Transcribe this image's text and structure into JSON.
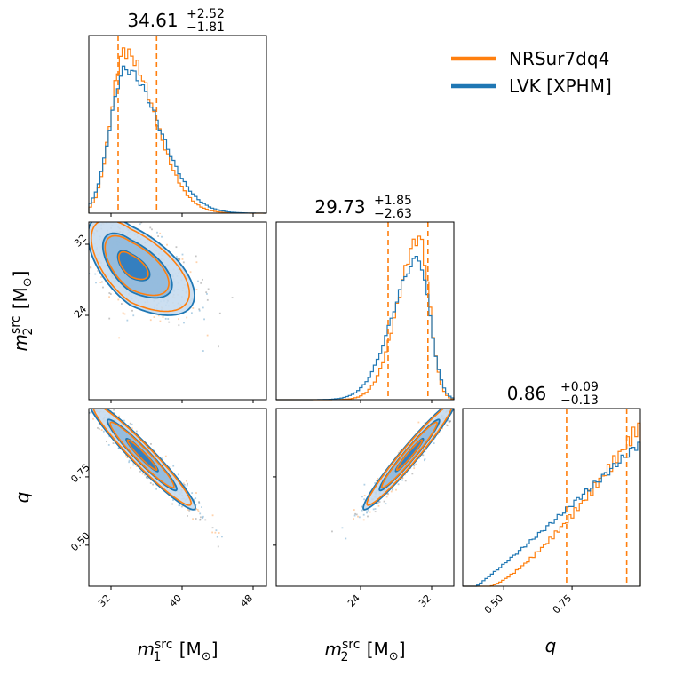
{
  "chart_data": {
    "type": "corner",
    "series": [
      {
        "name": "NRSur7dq4",
        "color": "#ff7f0e"
      },
      {
        "name": "LVK [XPHM]",
        "color": "#1f77b4"
      }
    ],
    "parameters": [
      {
        "key": "m1",
        "label_main": "m",
        "label_sub": "1",
        "label_sup": "src",
        "label_unit": "[M",
        "label_unit_sub": "⊙",
        "label_close": "]",
        "title_median": "34.61",
        "title_plus": "+2.52",
        "title_minus": "−1.81",
        "range": [
          29.5,
          49.5
        ],
        "ticks": [
          32,
          40,
          48
        ],
        "tick_labels": [
          "32",
          "40",
          "48"
        ],
        "quantiles": [
          32.8,
          37.13
        ]
      },
      {
        "key": "m2",
        "label_main": "m",
        "label_sub": "2",
        "label_sup": "src",
        "label_unit": "[M",
        "label_unit_sub": "⊙",
        "label_close": "]",
        "title_median": "29.73",
        "title_plus": "+1.85",
        "title_minus": "−2.63",
        "range": [
          14.5,
          34.5
        ],
        "ticks": [
          24,
          32
        ],
        "tick_labels": [
          "24",
          "32"
        ],
        "quantiles": [
          27.1,
          31.58
        ]
      },
      {
        "key": "q",
        "label_main": "q",
        "title_median": "0.86",
        "title_plus": "+0.09",
        "title_minus": "−0.13",
        "range": [
          0.35,
          1.0
        ],
        "ticks": [
          0.5,
          0.75
        ],
        "tick_labels": [
          "0.50",
          "0.75"
        ],
        "quantiles": [
          0.73,
          0.95
        ]
      }
    ],
    "legend_placement": "top-right"
  }
}
